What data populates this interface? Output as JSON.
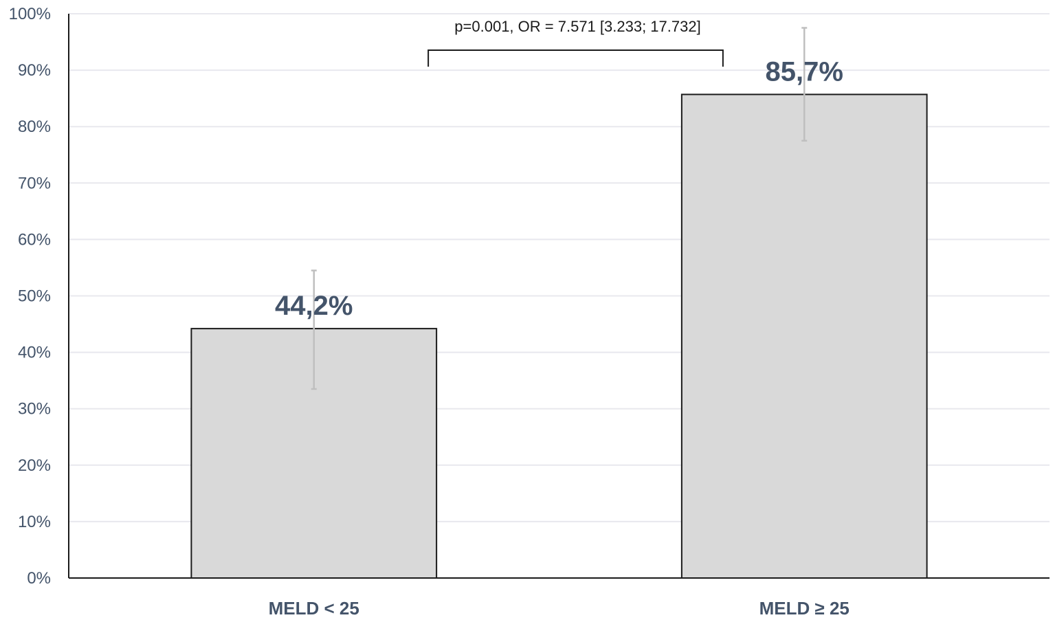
{
  "chart_data": {
    "type": "bar",
    "categories": [
      "MELD < 25",
      "MELD ≥ 25"
    ],
    "values": [
      44.2,
      85.7
    ],
    "data_labels": [
      "44,2%",
      "85,7%"
    ],
    "error_bars": [
      {
        "low": 33.5,
        "high": 54.5
      },
      {
        "low": 77.5,
        "high": 97.5
      }
    ],
    "y_ticks": [
      "0%",
      "10%",
      "20%",
      "30%",
      "40%",
      "50%",
      "60%",
      "70%",
      "80%",
      "90%",
      "100%"
    ],
    "ylim": [
      0,
      100
    ],
    "grid": true,
    "annotation": {
      "text": "p=0.001, OR = 7.571 [3.233; 17.732]",
      "between": [
        0,
        1
      ]
    },
    "colors": {
      "bar_fill": "#d9d9d9",
      "bar_stroke": "#1a1a1a",
      "error_bar": "#bfbfbf",
      "grid": "#e8e8ee",
      "axis": "#1a1a1a",
      "label": "#44546a"
    }
  }
}
